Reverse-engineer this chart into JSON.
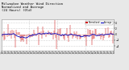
{
  "title": "Milwaukee Weather Wind Direction\nNormalized and Average\n(24 Hours) (Old)",
  "title_fontsize": 2.8,
  "background_color": "#e8e8e8",
  "plot_bg_color": "#ffffff",
  "grid_color": "#aaaaaa",
  "bar_color": "#cc0000",
  "line_color": "#0000bb",
  "ylim": [
    -5.5,
    5.0
  ],
  "yticks": [
    -4,
    -2,
    0,
    2,
    4
  ],
  "n_points": 144,
  "legend_labels": [
    "Normalized",
    "Average"
  ],
  "legend_colors": [
    "#cc0000",
    "#0000bb"
  ],
  "noise_scale": 1.2,
  "spike_locs": [
    18,
    32,
    68,
    70,
    88,
    108,
    115
  ],
  "spike_vals": [
    -4.5,
    -3.5,
    4.8,
    -5.0,
    3.2,
    -4.0,
    -3.8
  ],
  "seed": 12
}
